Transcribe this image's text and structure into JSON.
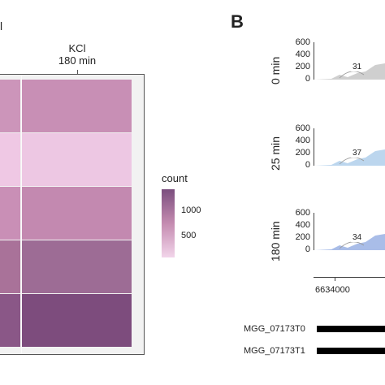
{
  "panel_a": {
    "top_label": "l",
    "facet_line1": "KCl",
    "facet_line2": "180 min",
    "heatmap": {
      "rows": [
        {
          "colors": [
            "#cc95ba",
            "#c88fb5"
          ]
        },
        {
          "colors": [
            "#efc8e4",
            "#edc7e3"
          ]
        },
        {
          "colors": [
            "#c98fb6",
            "#c389b0"
          ]
        },
        {
          "colors": [
            "#a97299",
            "#9d6c95"
          ]
        },
        {
          "colors": [
            "#8a5787",
            "#7d4c7d"
          ]
        }
      ]
    },
    "legend": {
      "title": "count",
      "ticks": [
        "1000",
        "500"
      ]
    }
  },
  "panel_b": {
    "label": "B",
    "tracks": [
      {
        "time": "0 min",
        "y_ticks": [
          "600",
          "400",
          "200",
          "0"
        ],
        "junction": "31",
        "color": "#cfcfcf"
      },
      {
        "time": "25 min",
        "y_ticks": [
          "600",
          "400",
          "200",
          "0"
        ],
        "junction": "37",
        "color": "#bcd6ee"
      },
      {
        "time": "180 min",
        "y_ticks": [
          "600",
          "400",
          "200",
          "0"
        ],
        "junction": "34",
        "color": "#a9bde8"
      }
    ],
    "x_tick": "6634000",
    "transcripts": [
      "MGG_07173T0",
      "MGG_07173T1"
    ]
  }
}
